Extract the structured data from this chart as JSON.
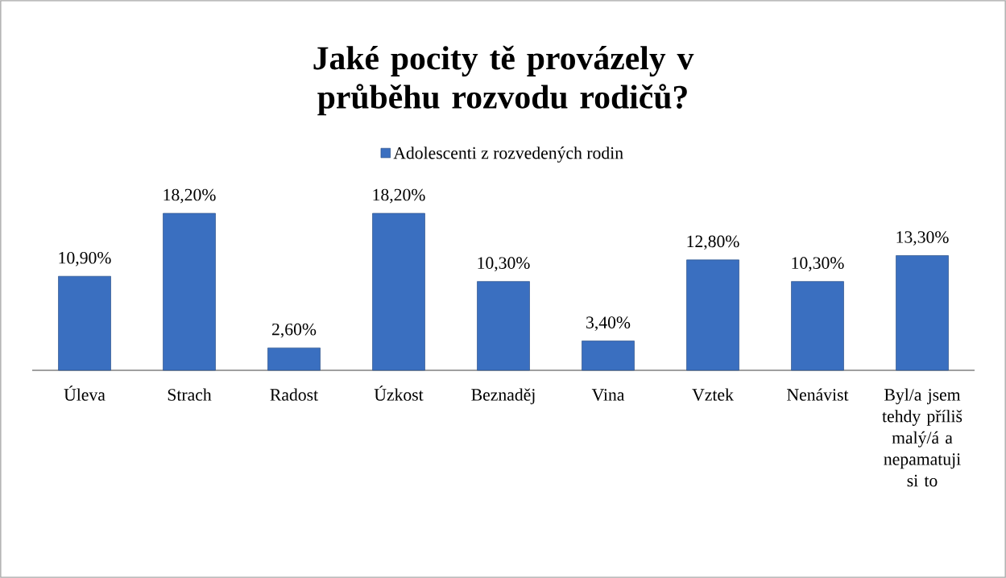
{
  "chart_data": {
    "type": "bar",
    "title": "Jaké pocity tě provázely v průběhu rozvodu rodičů?",
    "categories": [
      "Úleva",
      "Strach",
      "Radost",
      "Úzkost",
      "Beznaděj",
      "Vina",
      "Vztek",
      "Nenávist",
      "Byl/a jsem tehdy příliš malý/á a nepamatuji si to"
    ],
    "series": [
      {
        "name": "Adolescenti z rozvedených rodin",
        "color": "#3a6fc0",
        "values": [
          10.9,
          18.2,
          2.6,
          18.2,
          10.3,
          3.4,
          12.8,
          10.3,
          13.3
        ],
        "value_labels": [
          "10,90%",
          "18,20%",
          "2,60%",
          "18,20%",
          "10,30%",
          "3,40%",
          "12,80%",
          "10,30%",
          "13,30%"
        ]
      }
    ],
    "legend": "top"
  }
}
